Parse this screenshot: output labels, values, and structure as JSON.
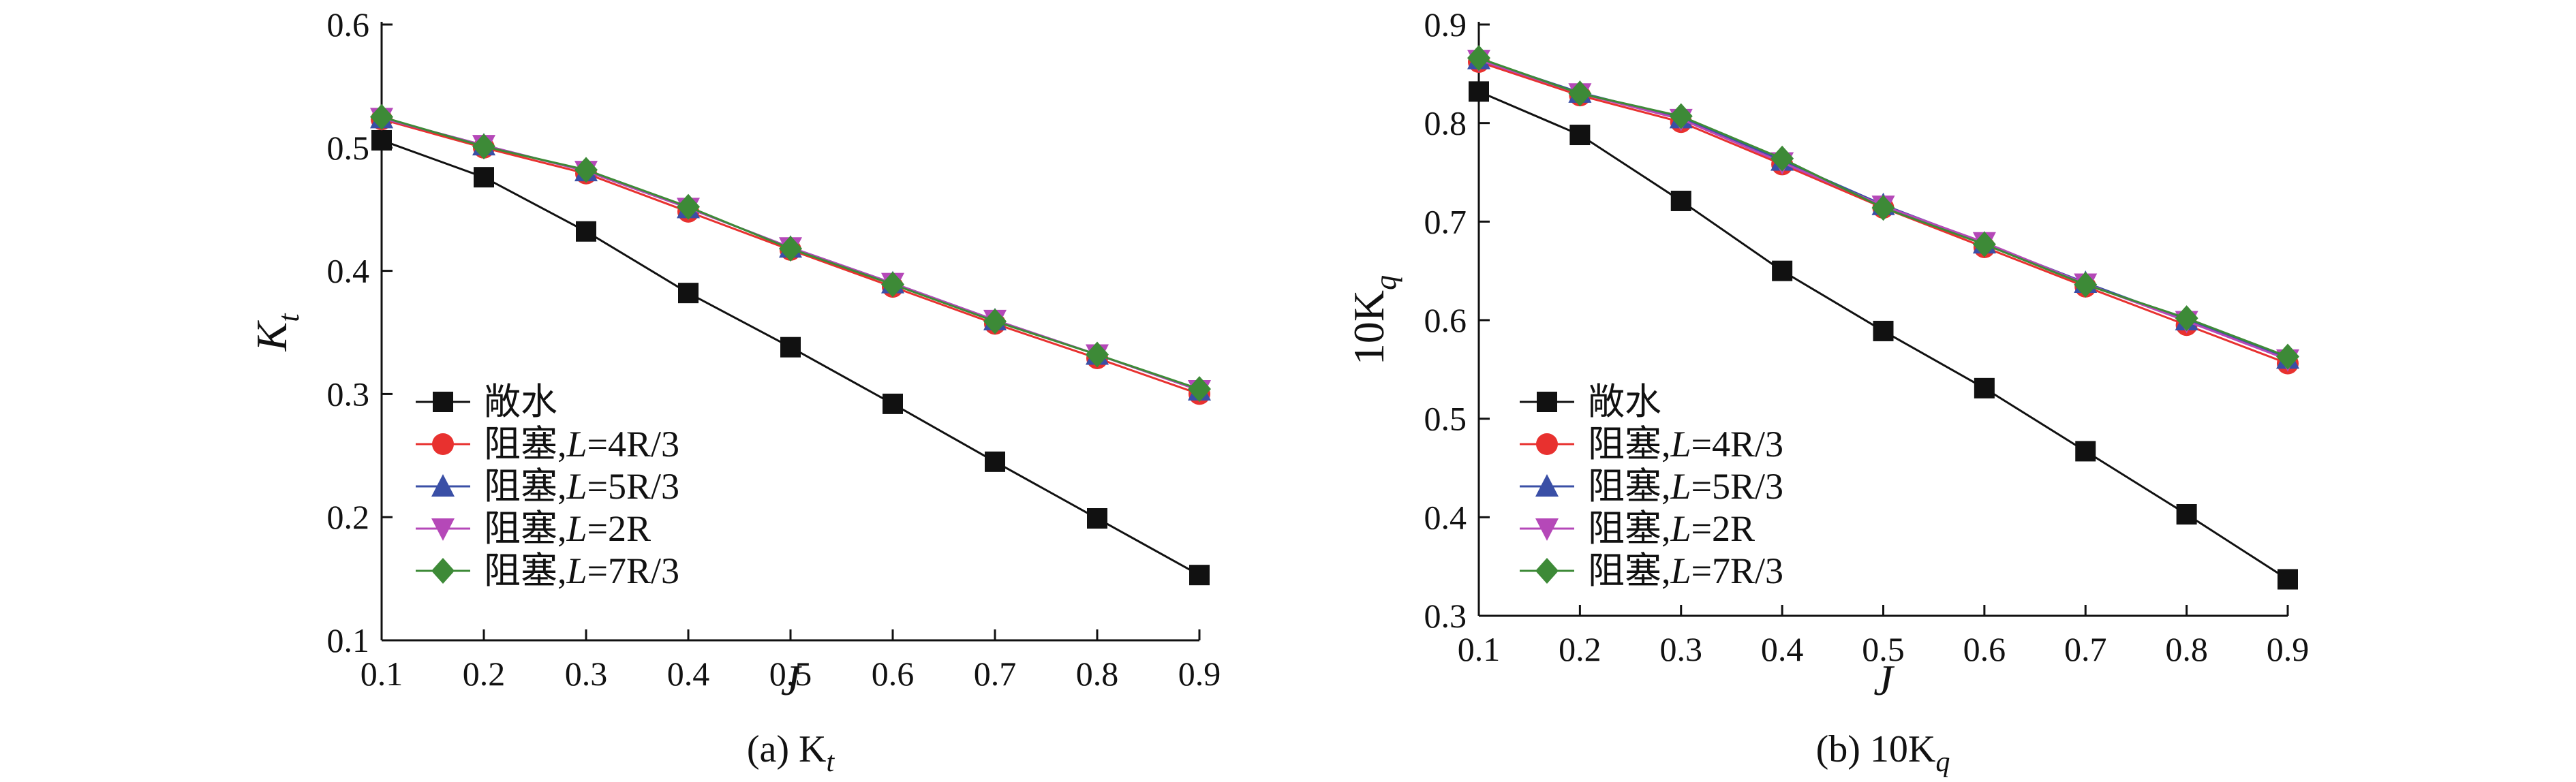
{
  "colors": {
    "open_water": "#111111",
    "L_4R3": "#e8312f",
    "L_5R3": "#3a4fa6",
    "L_2R": "#b548b8",
    "L_7R3": "#3d8a37"
  },
  "panels": [
    {
      "caption": "(a) Kt",
      "caption_main": "(a) K",
      "caption_sub": "t",
      "ylabel": "Kt",
      "ylabel_main": "K",
      "ylabel_sub": "t"
    },
    {
      "caption": "(b) 10Kq",
      "caption_main": "(b) 10K",
      "caption_sub": "q",
      "ylabel": "10Kq",
      "ylabel_main": "10K",
      "ylabel_sub": "q"
    }
  ],
  "chart_data": [
    {
      "type": "line",
      "xlabel": "J",
      "ylabel": "Kt",
      "xlim": [
        0.1,
        0.9
      ],
      "ylim": [
        0.1,
        0.6
      ],
      "xticks": [
        "0.1",
        "0.2",
        "0.3",
        "0.4",
        "0.5",
        "0.6",
        "0.7",
        "0.8",
        "0.9"
      ],
      "yticks": [
        "0.1",
        "0.2",
        "0.3",
        "0.4",
        "0.5",
        "0.6"
      ],
      "legend_position": "bottom-left",
      "series": [
        {
          "name": "敞水",
          "label_main": "敞水",
          "label_italic": "",
          "label_tail": "",
          "marker": "square",
          "color": "#111111",
          "x": [
            0.1,
            0.2,
            0.3,
            0.4,
            0.5,
            0.6,
            0.7,
            0.8,
            0.9
          ],
          "y": [
            0.506,
            0.476,
            0.432,
            0.382,
            0.338,
            0.292,
            0.245,
            0.199,
            0.153
          ]
        },
        {
          "name": "阻塞,L=4R/3",
          "label_main": "阻塞,",
          "label_italic": "L",
          "label_tail": "=4R/3",
          "marker": "circle",
          "color": "#e8312f",
          "x": [
            0.1,
            0.2,
            0.3,
            0.4,
            0.5,
            0.6,
            0.7,
            0.8,
            0.9
          ],
          "y": [
            0.523,
            0.5,
            0.479,
            0.448,
            0.417,
            0.387,
            0.357,
            0.329,
            0.3
          ]
        },
        {
          "name": "阻塞,L=5R/3",
          "label_main": "阻塞,",
          "label_italic": "L",
          "label_tail": "=5R/3",
          "marker": "triangle-up",
          "color": "#3a4fa6",
          "x": [
            0.1,
            0.2,
            0.3,
            0.4,
            0.5,
            0.6,
            0.7,
            0.8,
            0.9
          ],
          "y": [
            0.524,
            0.502,
            0.481,
            0.451,
            0.419,
            0.39,
            0.36,
            0.332,
            0.303
          ]
        },
        {
          "name": "阻塞,L=2R",
          "label_main": "阻塞,",
          "label_italic": "L",
          "label_tail": "=2R",
          "marker": "triangle-down",
          "color": "#b548b8",
          "x": [
            0.1,
            0.2,
            0.3,
            0.4,
            0.5,
            0.6,
            0.7,
            0.8,
            0.9
          ],
          "y": [
            0.524,
            0.502,
            0.481,
            0.451,
            0.419,
            0.39,
            0.36,
            0.332,
            0.303
          ]
        },
        {
          "name": "阻塞,L=7R/3",
          "label_main": "阻塞,",
          "label_italic": "L",
          "label_tail": "=7R/3",
          "marker": "diamond",
          "color": "#3d8a37",
          "x": [
            0.1,
            0.2,
            0.3,
            0.4,
            0.5,
            0.6,
            0.7,
            0.8,
            0.9
          ],
          "y": [
            0.525,
            0.501,
            0.482,
            0.452,
            0.418,
            0.389,
            0.359,
            0.332,
            0.304
          ]
        }
      ]
    },
    {
      "type": "line",
      "xlabel": "J",
      "ylabel": "10Kq",
      "xlim": [
        0.1,
        0.9
      ],
      "ylim": [
        0.3,
        0.9
      ],
      "xticks": [
        "0.1",
        "0.2",
        "0.3",
        "0.4",
        "0.5",
        "0.6",
        "0.7",
        "0.8",
        "0.9"
      ],
      "yticks": [
        "0.3",
        "0.4",
        "0.5",
        "0.6",
        "0.7",
        "0.8",
        "0.9"
      ],
      "legend_position": "bottom-left",
      "series": [
        {
          "name": "敞水",
          "label_main": "敞水",
          "label_italic": "",
          "label_tail": "",
          "marker": "square",
          "color": "#111111",
          "x": [
            0.1,
            0.2,
            0.3,
            0.4,
            0.5,
            0.6,
            0.7,
            0.8,
            0.9
          ],
          "y": [
            0.832,
            0.788,
            0.721,
            0.65,
            0.589,
            0.531,
            0.467,
            0.403,
            0.337
          ]
        },
        {
          "name": "阻塞,L=4R/3",
          "label_main": "阻塞,",
          "label_italic": "L",
          "label_tail": "=4R/3",
          "marker": "circle",
          "color": "#e8312f",
          "x": [
            0.1,
            0.2,
            0.3,
            0.4,
            0.5,
            0.6,
            0.7,
            0.8,
            0.9
          ],
          "y": [
            0.862,
            0.828,
            0.801,
            0.758,
            0.714,
            0.674,
            0.634,
            0.595,
            0.556
          ]
        },
        {
          "name": "阻塞,L=5R/3",
          "label_main": "阻塞,",
          "label_italic": "L",
          "label_tail": "=5R/3",
          "marker": "triangle-up",
          "color": "#3a4fa6",
          "x": [
            0.1,
            0.2,
            0.3,
            0.4,
            0.5,
            0.6,
            0.7,
            0.8,
            0.9
          ],
          "y": [
            0.865,
            0.831,
            0.805,
            0.762,
            0.717,
            0.678,
            0.638,
            0.6,
            0.561
          ]
        },
        {
          "name": "阻塞,L=2R",
          "label_main": "阻塞,",
          "label_italic": "L",
          "label_tail": "=2R",
          "marker": "triangle-down",
          "color": "#b548b8",
          "x": [
            0.1,
            0.2,
            0.3,
            0.4,
            0.5,
            0.6,
            0.7,
            0.8,
            0.9
          ],
          "y": [
            0.864,
            0.83,
            0.804,
            0.76,
            0.716,
            0.679,
            0.637,
            0.599,
            0.56
          ]
        },
        {
          "name": "阻塞,L=7R/3",
          "label_main": "阻塞,",
          "label_italic": "L",
          "label_tail": "=7R/3",
          "marker": "diamond",
          "color": "#3d8a37",
          "x": [
            0.1,
            0.2,
            0.3,
            0.4,
            0.5,
            0.6,
            0.7,
            0.8,
            0.9
          ],
          "y": [
            0.866,
            0.83,
            0.807,
            0.764,
            0.714,
            0.677,
            0.636,
            0.602,
            0.563
          ]
        }
      ]
    }
  ]
}
